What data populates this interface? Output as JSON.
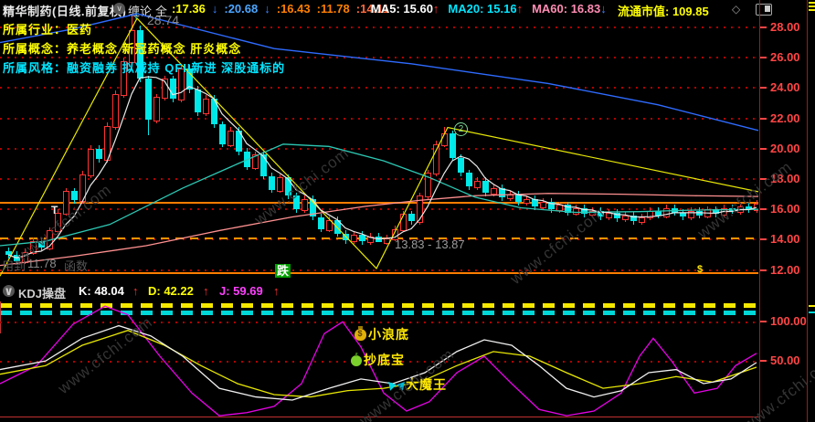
{
  "window": {
    "title": "精华制药(日线.前复权)"
  },
  "topbar": {
    "chan_label": "缠论",
    "chan_scope": "全",
    "values": [
      {
        "text": ":17.36",
        "color": "#ffff00",
        "arrow": "↓",
        "arrow_dir": "dn"
      },
      {
        "text": ":20.68",
        "color": "#4da6ff",
        "arrow": "↓",
        "arrow_dir": "dn"
      },
      {
        "text": ":16.43",
        "color": "#ff8000"
      },
      {
        "text": ":11.78",
        "color": "#ff8000"
      },
      {
        "text": ":14.11",
        "color": "#ff6a3c"
      }
    ],
    "mas": [
      {
        "text": "MA5: 15.60",
        "color": "#ffffff",
        "arrow": "↑",
        "arrow_dir": "up"
      },
      {
        "text": "MA20: 15.16",
        "color": "#00e5ff",
        "arrow": "↑",
        "arrow_dir": "up"
      },
      {
        "text": "MA60: 16.83",
        "color": "#ff8cb4",
        "arrow": "↓",
        "arrow_dir": "dn"
      }
    ],
    "market_cap": "流通市值: 109.85",
    "market_cap_color": "#ffff00"
  },
  "info_rows": [
    {
      "text": "所属行业：医药",
      "color": "#ffff00"
    },
    {
      "text": "所属概念：养老概念 新冠药概念 肝炎概念",
      "color": "#ffff00"
    },
    {
      "text": "所属风格：融资融券 拟减持 QFII新进 深股通标的",
      "color": "#00e5ff"
    }
  ],
  "annotations": {
    "peak": "28.74",
    "peak_arrow": "↓",
    "t_mark": "T",
    "bottom_range": "13.83 - 13.87",
    "low_left": "11.78",
    "wm_left": "用到",
    "wm_right": "函数",
    "fall_tag": "跌",
    "circle2": "2",
    "dollar": "$",
    "watermark": "www.cfchi.com"
  },
  "kdj_header": {
    "title": "KDJ操盘",
    "k": "K: 48.04",
    "d": "D: 42.22",
    "j": "J: 59.69"
  },
  "kdj_labels": [
    {
      "icon": "moneybag-icon",
      "text": "小浪底"
    },
    {
      "icon": "apple-icon",
      "text": "抄底宝"
    },
    {
      "icon": "butterfly-icon",
      "text": "大魔王"
    }
  ],
  "axis": {
    "main_ticks": [
      "28.00",
      "26.00",
      "24.00",
      "22.00",
      "20.00",
      "18.00",
      "16.00",
      "14.00",
      "12.00"
    ],
    "kdj_ticks": [
      "100.00",
      "50.00"
    ]
  },
  "chart_data": {
    "type": "candlestick",
    "title": "精华制药 日线 前复权",
    "ylim_main": [
      11.5,
      28.9
    ],
    "main_axis_prices": [
      28,
      26,
      24,
      22,
      20,
      18,
      16,
      14,
      12
    ],
    "closes": [
      13.0,
      12.6,
      13.2,
      13.9,
      13.5,
      14.6,
      15.8,
      17.2,
      16.6,
      18.3,
      20.0,
      19.3,
      21.5,
      23.6,
      25.8,
      27.8,
      24.6,
      21.9,
      23.4,
      24.6,
      23.3,
      25.3,
      23.9,
      22.4,
      23.3,
      21.6,
      20.3,
      21.2,
      19.8,
      18.8,
      19.6,
      18.2,
      17.3,
      18.1,
      16.9,
      16.0,
      16.7,
      15.5,
      14.7,
      15.3,
      14.4,
      13.95,
      14.35,
      13.9,
      14.2,
      13.87,
      14.1,
      14.7,
      15.7,
      15.2,
      16.9,
      18.4,
      20.3,
      21.0,
      19.4,
      18.4,
      17.5,
      17.9,
      17.1,
      17.4,
      16.8,
      17.0,
      16.5,
      16.7,
      16.2,
      16.5,
      16.0,
      16.3,
      15.8,
      16.1,
      15.7,
      15.9,
      15.5,
      15.8,
      15.4,
      15.6,
      15.2,
      15.5,
      15.9,
      15.6,
      16.1,
      15.8,
      15.5,
      15.9,
      15.6,
      16.0,
      15.7,
      16.1,
      15.9,
      16.2,
      16.0,
      16.4
    ],
    "first_open": 13.25,
    "wick_pad": 0.22,
    "overrides": {
      "15": {
        "h": 28.74
      },
      "16": {
        "h": 28.1
      },
      "17": {
        "l": 20.9
      },
      "45": {
        "l": 13.83
      },
      "53": {
        "h": 21.45
      }
    },
    "hlines": [
      {
        "price": 16.43,
        "style": "solid"
      },
      {
        "price": 14.11,
        "style": "dashed"
      },
      {
        "price": 11.78,
        "style": "solid"
      }
    ],
    "lines": {
      "ma20_teal": [
        [
          0,
          13.6
        ],
        [
          50,
          13.9
        ],
        [
          120,
          15.0
        ],
        [
          200,
          17.4
        ],
        [
          260,
          19.0
        ],
        [
          310,
          20.3
        ],
        [
          360,
          20.15
        ],
        [
          420,
          19.2
        ],
        [
          470,
          18.1
        ],
        [
          520,
          16.8
        ],
        [
          570,
          16.1
        ],
        [
          630,
          15.8
        ],
        [
          700,
          15.85
        ],
        [
          760,
          15.95
        ],
        [
          830,
          16.0
        ]
      ],
      "ma60_pink": [
        [
          0,
          12.3
        ],
        [
          80,
          12.9
        ],
        [
          160,
          13.6
        ],
        [
          240,
          14.6
        ],
        [
          320,
          15.5
        ],
        [
          400,
          16.2
        ],
        [
          460,
          16.6
        ],
        [
          520,
          16.9
        ],
        [
          600,
          17.05
        ],
        [
          680,
          17.0
        ],
        [
          760,
          16.9
        ],
        [
          830,
          16.85
        ]
      ],
      "ma250_blue": [
        [
          0,
          27.0
        ],
        [
          80,
          27.9
        ],
        [
          150,
          28.9
        ],
        [
          300,
          26.6
        ],
        [
          450,
          25.6
        ],
        [
          600,
          24.3
        ],
        [
          720,
          22.9
        ],
        [
          830,
          21.2
        ]
      ],
      "chan_yellow": [
        [
          0,
          11.6
        ],
        [
          150,
          28.6
        ],
        [
          412,
          12.1
        ],
        [
          490,
          21.4
        ],
        [
          835,
          17.1
        ]
      ]
    },
    "kdj": {
      "k_value": 48.04,
      "d_value": 42.22,
      "j_value": 59.69,
      "ylim": [
        -25,
        125
      ],
      "k": [
        [
          0,
          39
        ],
        [
          50,
          50
        ],
        [
          90,
          79
        ],
        [
          130,
          95
        ],
        [
          165,
          82
        ],
        [
          200,
          56
        ],
        [
          240,
          15
        ],
        [
          280,
          4
        ],
        [
          320,
          0
        ],
        [
          360,
          15
        ],
        [
          395,
          27
        ],
        [
          430,
          21
        ],
        [
          465,
          35
        ],
        [
          500,
          62
        ],
        [
          530,
          77
        ],
        [
          560,
          70
        ],
        [
          590,
          44
        ],
        [
          620,
          15
        ],
        [
          650,
          4
        ],
        [
          680,
          12
        ],
        [
          710,
          35
        ],
        [
          740,
          39
        ],
        [
          770,
          21
        ],
        [
          800,
          27
        ],
        [
          828,
          48
        ]
      ],
      "d": [
        [
          0,
          33
        ],
        [
          50,
          44
        ],
        [
          90,
          70
        ],
        [
          140,
          89
        ],
        [
          180,
          70
        ],
        [
          220,
          44
        ],
        [
          260,
          21
        ],
        [
          300,
          7
        ],
        [
          340,
          4
        ],
        [
          380,
          12
        ],
        [
          420,
          15
        ],
        [
          460,
          23
        ],
        [
          500,
          44
        ],
        [
          540,
          62
        ],
        [
          580,
          56
        ],
        [
          620,
          35
        ],
        [
          660,
          15
        ],
        [
          700,
          21
        ],
        [
          740,
          30
        ],
        [
          780,
          23
        ],
        [
          828,
          42
        ]
      ],
      "j": [
        [
          0,
          21
        ],
        [
          40,
          44
        ],
        [
          80,
          97
        ],
        [
          115,
          120
        ],
        [
          140,
          109
        ],
        [
          175,
          56
        ],
        [
          210,
          9
        ],
        [
          240,
          -20
        ],
        [
          270,
          -16
        ],
        [
          300,
          -8
        ],
        [
          330,
          21
        ],
        [
          355,
          85
        ],
        [
          375,
          100
        ],
        [
          395,
          68
        ],
        [
          420,
          9
        ],
        [
          445,
          -14
        ],
        [
          470,
          -2
        ],
        [
          500,
          35
        ],
        [
          530,
          56
        ],
        [
          560,
          21
        ],
        [
          590,
          -12
        ],
        [
          620,
          -20
        ],
        [
          650,
          -14
        ],
        [
          680,
          9
        ],
        [
          700,
          56
        ],
        [
          715,
          79
        ],
        [
          735,
          50
        ],
        [
          760,
          9
        ],
        [
          785,
          15
        ],
        [
          805,
          44
        ],
        [
          828,
          59.69
        ]
      ]
    }
  }
}
